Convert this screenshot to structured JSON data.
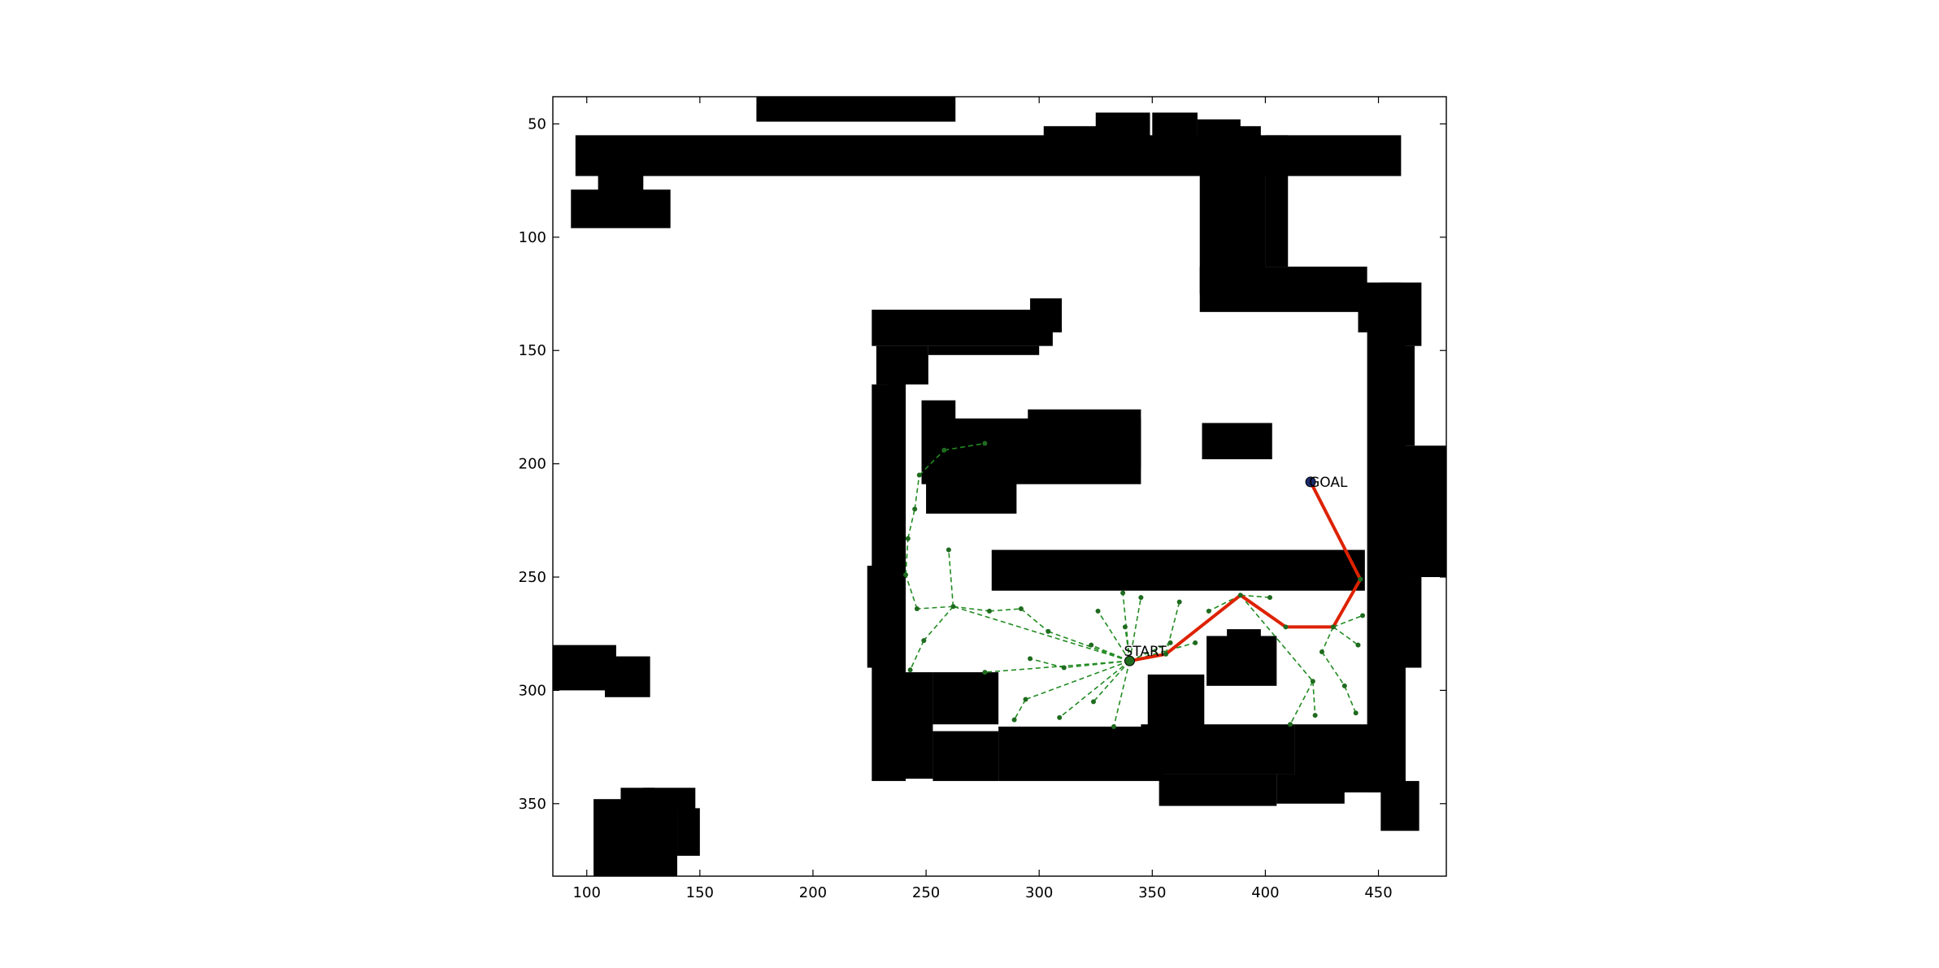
{
  "chart_data": {
    "type": "scatter",
    "title": "",
    "xlabel": "",
    "ylabel": "",
    "xlim": [
      85,
      480
    ],
    "ylim": [
      38,
      382
    ],
    "y_inverted": true,
    "grid": false,
    "xticks": [
      100,
      150,
      200,
      250,
      300,
      350,
      400,
      450
    ],
    "yticks": [
      50,
      100,
      150,
      200,
      250,
      300,
      350
    ],
    "obstacle_color": "#000000",
    "tree_color": "#228b22",
    "path_color": "#dd2200",
    "goal_color": "#1a2a6c",
    "obstacles": [
      [
        95,
        55,
        460,
        73
      ],
      [
        105,
        71,
        125,
        80
      ],
      [
        175,
        38,
        263,
        49
      ],
      [
        302,
        51,
        335,
        60
      ],
      [
        325,
        45,
        349,
        60
      ],
      [
        350,
        45,
        370,
        60
      ],
      [
        370,
        48,
        389,
        60
      ],
      [
        388,
        51,
        398,
        60
      ],
      [
        93,
        79,
        137,
        96
      ],
      [
        400,
        55,
        410,
        113
      ],
      [
        371,
        60,
        400,
        125
      ],
      [
        371,
        113,
        445,
        133
      ],
      [
        441,
        120,
        460,
        142
      ],
      [
        451,
        120,
        469,
        148
      ],
      [
        226,
        132,
        306,
        148
      ],
      [
        296,
        127,
        310,
        142
      ],
      [
        228,
        148,
        251,
        165
      ],
      [
        251,
        148,
        300,
        152
      ],
      [
        226,
        165,
        241,
        340
      ],
      [
        248,
        172,
        263,
        190
      ],
      [
        233,
        165,
        241,
        245
      ],
      [
        224,
        245,
        233,
        290
      ],
      [
        232,
        292,
        253,
        339
      ],
      [
        253,
        292,
        282,
        315
      ],
      [
        253,
        318,
        282,
        340
      ],
      [
        282,
        316,
        355,
        340
      ],
      [
        345,
        315,
        413,
        337
      ],
      [
        413,
        315,
        452,
        345
      ],
      [
        445,
        135,
        462,
        345
      ],
      [
        456,
        148,
        466,
        192
      ],
      [
        456,
        192,
        480,
        250
      ],
      [
        457,
        250,
        469,
        290
      ],
      [
        451,
        340,
        468,
        362
      ],
      [
        353,
        337,
        405,
        351
      ],
      [
        405,
        337,
        435,
        350
      ],
      [
        432,
        337,
        450,
        345
      ],
      [
        372,
        182,
        403,
        198
      ],
      [
        248,
        180,
        345,
        209
      ],
      [
        295,
        176,
        345,
        202
      ],
      [
        250,
        196,
        290,
        222
      ],
      [
        279,
        238,
        444,
        256
      ],
      [
        348,
        293,
        373,
        318
      ],
      [
        374,
        276,
        405,
        298
      ],
      [
        383,
        273,
        398,
        281
      ],
      [
        85,
        280,
        113,
        300
      ],
      [
        108,
        285,
        128,
        303
      ],
      [
        103,
        348,
        140,
        382
      ],
      [
        115,
        343,
        130,
        353
      ],
      [
        125,
        343,
        148,
        353
      ],
      [
        140,
        352,
        150,
        373
      ]
    ],
    "tree_nodes": [
      [
        340,
        287
      ],
      [
        356,
        284
      ],
      [
        362,
        261
      ],
      [
        402,
        259
      ],
      [
        389,
        258
      ],
      [
        375,
        265
      ],
      [
        430,
        272
      ],
      [
        442,
        251
      ],
      [
        443,
        267
      ],
      [
        441,
        280
      ],
      [
        425,
        283
      ],
      [
        435,
        298
      ],
      [
        440,
        310
      ],
      [
        421,
        296
      ],
      [
        422,
        311
      ],
      [
        411,
        315
      ],
      [
        262,
        263
      ],
      [
        246,
        264
      ],
      [
        241,
        249
      ],
      [
        242,
        233
      ],
      [
        245,
        220
      ],
      [
        247,
        205
      ],
      [
        258,
        194
      ],
      [
        276,
        191
      ],
      [
        260,
        238
      ],
      [
        249,
        278
      ],
      [
        243,
        291
      ],
      [
        278,
        265
      ],
      [
        292,
        264
      ],
      [
        304,
        274
      ],
      [
        338,
        272
      ],
      [
        337,
        257
      ],
      [
        345,
        259
      ],
      [
        326,
        265
      ],
      [
        323,
        280
      ],
      [
        311,
        290
      ],
      [
        296,
        286
      ],
      [
        276,
        292
      ],
      [
        294,
        304
      ],
      [
        289,
        313
      ],
      [
        309,
        312
      ],
      [
        324,
        305
      ],
      [
        333,
        316
      ],
      [
        358,
        279
      ],
      [
        369,
        279
      ]
    ],
    "tree_edges": [
      [
        0,
        16
      ],
      [
        16,
        17
      ],
      [
        17,
        18
      ],
      [
        18,
        19
      ],
      [
        19,
        20
      ],
      [
        20,
        21
      ],
      [
        21,
        22
      ],
      [
        22,
        23
      ],
      [
        16,
        24
      ],
      [
        16,
        25
      ],
      [
        25,
        26
      ],
      [
        16,
        27
      ],
      [
        27,
        28
      ],
      [
        28,
        29
      ],
      [
        29,
        0
      ],
      [
        0,
        30
      ],
      [
        0,
        31
      ],
      [
        0,
        32
      ],
      [
        0,
        33
      ],
      [
        0,
        34
      ],
      [
        0,
        35
      ],
      [
        35,
        36
      ],
      [
        0,
        37
      ],
      [
        0,
        38
      ],
      [
        38,
        39
      ],
      [
        0,
        40
      ],
      [
        0,
        41
      ],
      [
        0,
        42
      ],
      [
        0,
        43
      ],
      [
        0,
        44
      ],
      [
        1,
        2
      ],
      [
        4,
        3
      ],
      [
        4,
        5
      ],
      [
        6,
        8
      ],
      [
        6,
        9
      ],
      [
        6,
        10
      ],
      [
        10,
        11
      ],
      [
        11,
        12
      ],
      [
        4,
        13
      ],
      [
        13,
        14
      ],
      [
        13,
        15
      ]
    ],
    "path": [
      [
        340,
        287
      ],
      [
        356,
        284
      ],
      [
        389,
        258
      ],
      [
        409,
        272
      ],
      [
        430,
        272
      ],
      [
        442,
        251
      ],
      [
        420,
        208
      ]
    ],
    "start": {
      "x": 340,
      "y": 287,
      "label": "START"
    },
    "goal": {
      "x": 420,
      "y": 208,
      "label": "GOAL"
    }
  }
}
